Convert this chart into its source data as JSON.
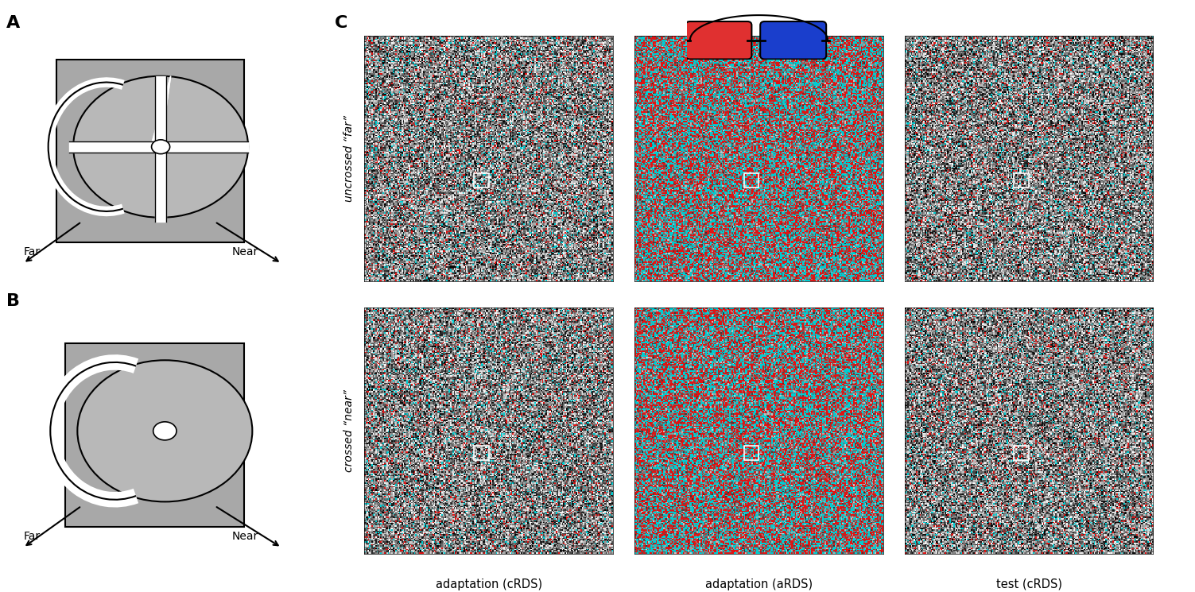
{
  "fig_width": 15.03,
  "fig_height": 7.45,
  "bg_color": "#ffffff",
  "label_A": "A",
  "label_B": "B",
  "label_C": "C",
  "far_label": "Far",
  "near_label": "Near",
  "row_labels": [
    "uncrossed “far”",
    "crossed “near”"
  ],
  "col_labels": [
    "adaptation (cRDS)",
    "adaptation (aRDS)",
    "test (cRDS)"
  ],
  "panel_gray": "#a0a0a0",
  "disk_gray": "#c0c0c0",
  "cyan_color": "#00d0d0",
  "red_color": "#e03030",
  "blue_color": "#1a3ecc"
}
